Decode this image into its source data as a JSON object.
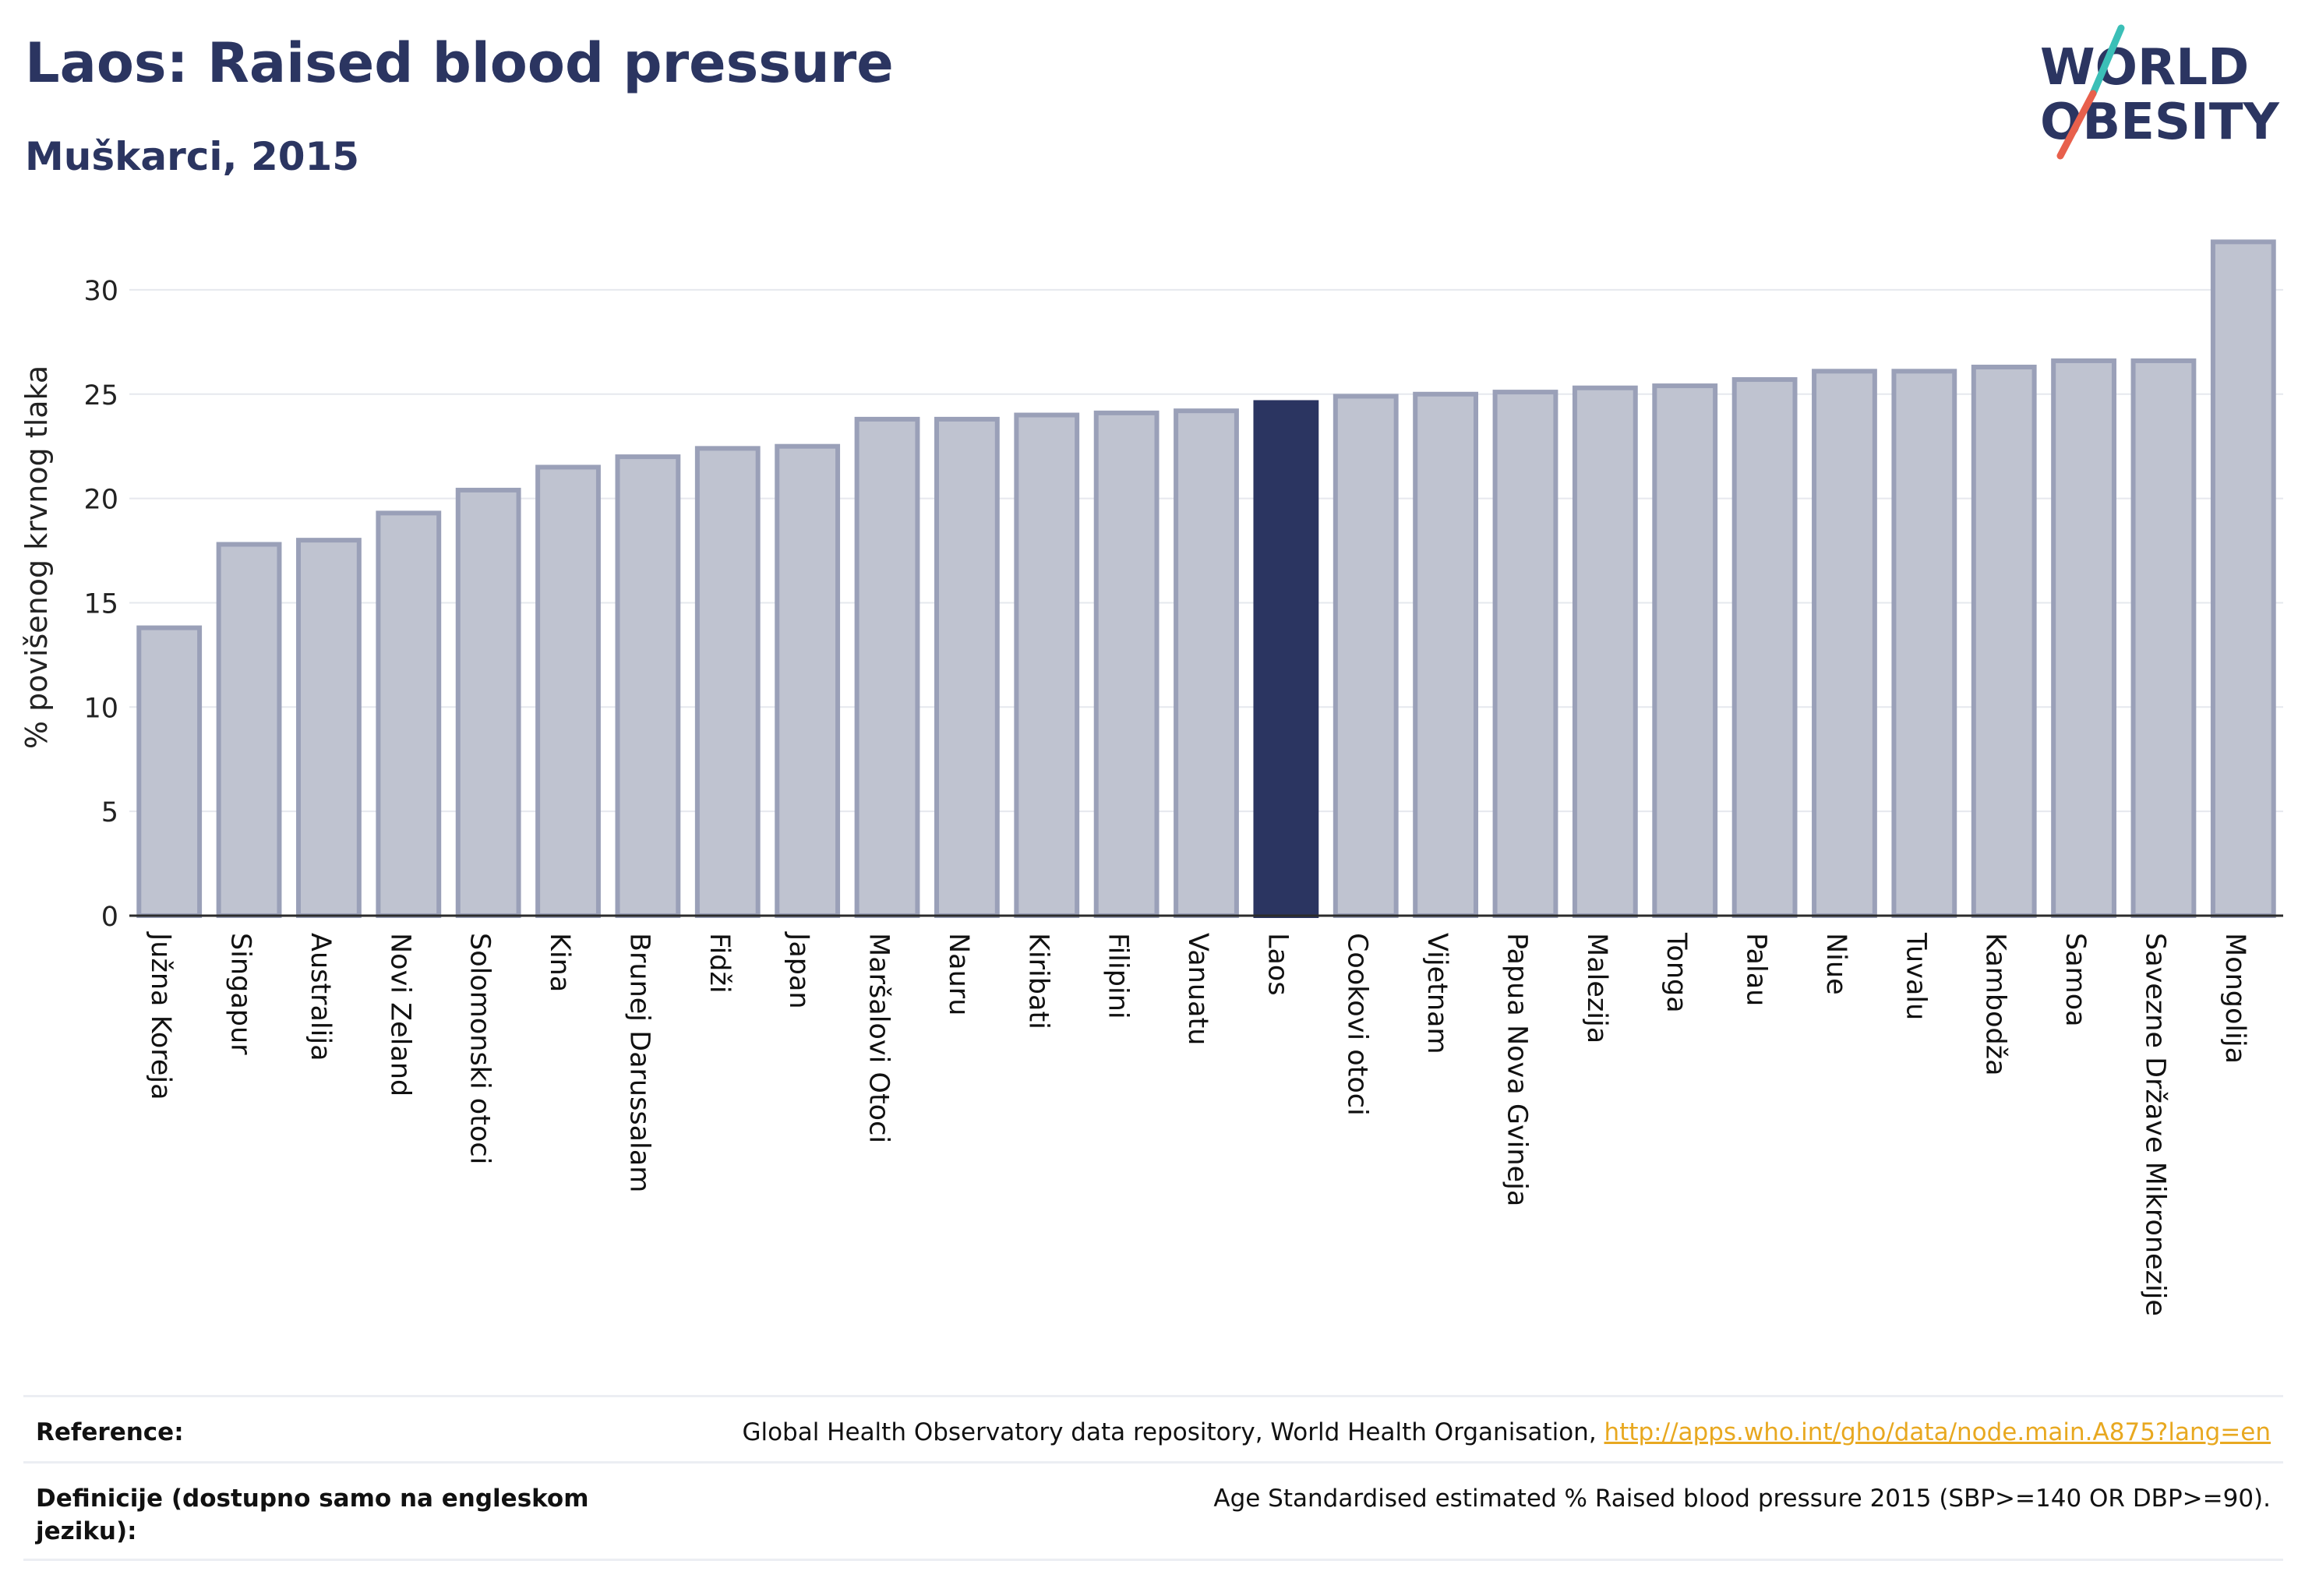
{
  "header": {
    "title": "Laos: Raised blood pressure",
    "subtitle": "Muškarci, 2015"
  },
  "logo": {
    "line1": "WORLD",
    "line2": "OBESITY",
    "colors": {
      "text": "#2b3561",
      "slash_teal": "#3bbfb7",
      "slash_red": "#e8604c"
    }
  },
  "chart_data": {
    "type": "bar",
    "ylabel": "% povišenog krvnog tlaka",
    "xlabel": "",
    "ylim": [
      0,
      32.5
    ],
    "yticks": [
      0,
      5,
      10,
      15,
      20,
      25,
      30
    ],
    "grid": true,
    "highlight": "Laos",
    "colors": {
      "bar": "#bfc3d0",
      "bar_edge": "#9aa0b8",
      "highlight": "#2b3561",
      "grid": "#e6e8ee"
    },
    "categories": [
      "Južna Koreja",
      "Singapur",
      "Australija",
      "Novi Zeland",
      "Solomonski otoci",
      "Kina",
      "Brunej Darussalam",
      "Fidži",
      "Japan",
      "Maršalovi Otoci",
      "Nauru",
      "Kiribati",
      "Filipini",
      "Vanuatu",
      "Laos",
      "Cookovi otoci",
      "Vijetnam",
      "Papua Nova Gvineja",
      "Malezija",
      "Tonga",
      "Palau",
      "Niue",
      "Tuvalu",
      "Kambodža",
      "Samoa",
      "Savezne Države Mikronezije",
      "Mongolija"
    ],
    "values": [
      13.8,
      17.8,
      18.0,
      19.3,
      20.4,
      21.5,
      22.0,
      22.4,
      22.5,
      23.8,
      23.8,
      24.0,
      24.1,
      24.2,
      24.6,
      24.9,
      25.0,
      25.1,
      25.3,
      25.4,
      25.7,
      26.1,
      26.1,
      26.3,
      26.6,
      26.6,
      32.3
    ]
  },
  "references": [
    {
      "label": "Reference:",
      "text": "Global Health Observatory data repository, World Health Organisation, ",
      "link": "http://apps.who.int/gho/data/node.main.A875?lang=en"
    },
    {
      "label": "Definicije (dostupno samo na engleskom jeziku):",
      "text": "Age Standardised estimated % Raised blood pressure 2015 (SBP>=140 OR DBP>=90)."
    }
  ]
}
